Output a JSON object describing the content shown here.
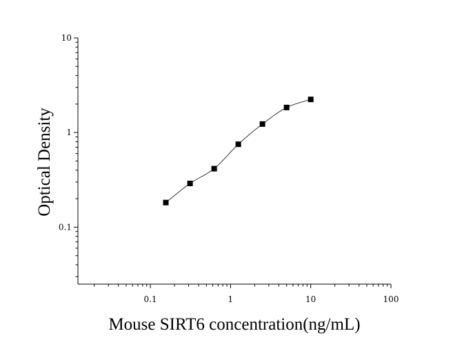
{
  "chart_data": {
    "type": "scatter",
    "title": "",
    "xlabel": "Mouse SIRT6 concentration(ng/mL)",
    "ylabel": "Optical Density",
    "xscale": "log",
    "yscale": "log",
    "xlim": [
      0.0125,
      100
    ],
    "ylim": [
      0.025,
      10
    ],
    "x_ticks": [
      "0.1",
      "1",
      "10",
      "100"
    ],
    "y_ticks": [
      "0.1",
      "1",
      "10"
    ],
    "grid": false,
    "legend": "none",
    "series": [
      {
        "x": [
          0.156,
          0.3125,
          0.625,
          1.25,
          2.5,
          5,
          10
        ],
        "y": [
          0.182,
          0.29,
          0.415,
          0.752,
          1.23,
          1.84,
          2.24
        ],
        "marker": "square",
        "fit_curve": true
      }
    ]
  }
}
